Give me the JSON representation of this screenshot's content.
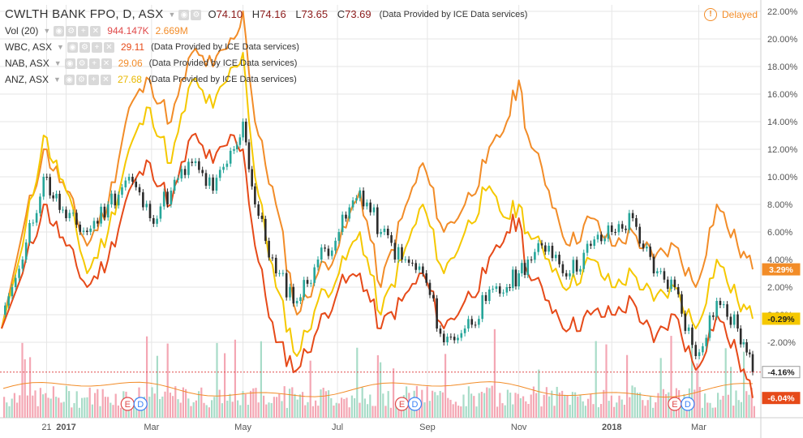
{
  "header": {
    "symbol": "CWLTH BANK FPO, D, ASX",
    "ohlc": {
      "o_label": "O",
      "o": "74.10",
      "h_label": "H",
      "h": "74.16",
      "l_label": "L",
      "l": "73.65",
      "c_label": "C",
      "c": "73.69"
    },
    "provider": "(Data Provided by ICE Data services)",
    "status": "Delayed",
    "status_icon": "exclamation-icon"
  },
  "legend": [
    {
      "name": "Vol (20)",
      "values": [
        "944.147K",
        "2.669M"
      ],
      "colors": [
        "#e04a4a",
        "#f28c28"
      ]
    },
    {
      "name": "WBC, ASX",
      "values": [
        "29.11"
      ],
      "colors": [
        "#e64a19"
      ],
      "provider": "(Data Provided by ICE Data services)"
    },
    {
      "name": "NAB, ASX",
      "values": [
        "29.06"
      ],
      "colors": [
        "#f28c28"
      ],
      "provider": "(Data Provided by ICE Data services)"
    },
    {
      "name": "ANZ, ASX",
      "values": [
        "27.68"
      ],
      "colors": [
        "#f2c200"
      ],
      "provider": "(Data Provided by ICE Data services)"
    }
  ],
  "colors": {
    "wbc": "#e64a19",
    "nab": "#f28c28",
    "anz": "#f5c800",
    "up": "#26a69a",
    "down": "#2b2b2b",
    "vol_up": "#a8dcc8",
    "vol_down": "#f4a7b4",
    "vol_ma": "#f28c28",
    "grid": "#e6e6e6"
  },
  "chart_data": {
    "type": "line",
    "y_unit": "%",
    "ylim": [
      -8,
      22
    ],
    "y_ticks": [
      "22.00%",
      "20.00%",
      "18.00%",
      "16.00%",
      "14.00%",
      "12.00%",
      "10.00%",
      "8.00%",
      "6.00%",
      "4.00%",
      "2.00%",
      "0.00%",
      "-2.00%"
    ],
    "x_ticks": [
      "21",
      "2017",
      "Mar",
      "May",
      "Jul",
      "Sep",
      "Nov",
      "2018",
      "Mar"
    ],
    "x_domain": [
      "2016-11-21",
      "2018-04-06"
    ],
    "x_tick_dates": [
      "2016-12-21",
      "2017-01-03",
      "2017-03-01",
      "2017-05-01",
      "2017-07-03",
      "2017-09-01",
      "2017-11-01",
      "2018-01-02",
      "2018-03-01"
    ],
    "last_values": [
      {
        "label": "3.29%",
        "value": 3.29,
        "series": "NAB, ASX"
      },
      {
        "label": "-0.29%",
        "value": -0.29,
        "series": "ANZ, ASX"
      },
      {
        "label": "-4.16%",
        "value": -4.16,
        "series": "CWLTH BANK FPO"
      },
      {
        "label": "-6.04%",
        "value": -6.04,
        "series": "WBC, ASX"
      }
    ],
    "series": [
      {
        "name": "NAB, ASX",
        "style": "line",
        "x": [
          "2016-11-21",
          "2016-12-05",
          "2016-12-19",
          "2017-01-03",
          "2017-01-17",
          "2017-01-31",
          "2017-02-14",
          "2017-02-28",
          "2017-03-14",
          "2017-03-28",
          "2017-04-11",
          "2017-04-25",
          "2017-05-01",
          "2017-05-09",
          "2017-05-23",
          "2017-06-06",
          "2017-06-20",
          "2017-07-04",
          "2017-07-18",
          "2017-08-01",
          "2017-08-15",
          "2017-08-29",
          "2017-09-12",
          "2017-09-26",
          "2017-10-10",
          "2017-10-24",
          "2017-11-01",
          "2017-11-07",
          "2017-11-21",
          "2017-12-05",
          "2017-12-19",
          "2018-01-02",
          "2018-01-16",
          "2018-01-30",
          "2018-02-13",
          "2018-02-27",
          "2018-03-13",
          "2018-03-27",
          "2018-04-06"
        ],
        "values": [
          -1,
          6,
          12,
          9,
          5,
          8,
          15,
          17,
          14,
          19,
          18,
          20,
          22,
          14,
          8,
          0,
          3,
          5,
          9,
          2,
          7,
          11,
          6,
          8,
          11,
          14,
          17,
          13,
          9,
          5,
          7,
          5,
          6,
          4,
          5,
          2,
          8,
          5,
          3.29
        ]
      },
      {
        "name": "ANZ, ASX",
        "style": "line",
        "x": [
          "2016-11-21",
          "2016-12-05",
          "2016-12-19",
          "2017-01-03",
          "2017-01-17",
          "2017-01-31",
          "2017-02-14",
          "2017-02-28",
          "2017-03-14",
          "2017-03-28",
          "2017-04-11",
          "2017-04-25",
          "2017-05-01",
          "2017-05-09",
          "2017-05-23",
          "2017-06-06",
          "2017-06-20",
          "2017-07-04",
          "2017-07-18",
          "2017-08-01",
          "2017-08-15",
          "2017-08-29",
          "2017-09-12",
          "2017-09-26",
          "2017-10-10",
          "2017-10-24",
          "2017-11-01",
          "2017-11-07",
          "2017-11-21",
          "2017-12-05",
          "2017-12-19",
          "2018-01-02",
          "2018-01-16",
          "2018-01-30",
          "2018-02-13",
          "2018-02-27",
          "2018-03-13",
          "2018-03-27",
          "2018-04-06"
        ],
        "values": [
          -1,
          5,
          13,
          9,
          3,
          6,
          12,
          15,
          11,
          17,
          15,
          18,
          19,
          10,
          2,
          -3,
          1,
          3,
          6,
          0,
          4,
          8,
          3,
          6,
          9,
          7,
          8,
          6,
          4,
          2,
          4,
          2,
          3,
          1,
          2,
          -1,
          4,
          1,
          -0.29
        ]
      },
      {
        "name": "WBC, ASX",
        "style": "line",
        "x": [
          "2016-11-21",
          "2016-12-05",
          "2016-12-19",
          "2017-01-03",
          "2017-01-17",
          "2017-01-31",
          "2017-02-14",
          "2017-02-28",
          "2017-03-14",
          "2017-03-28",
          "2017-04-11",
          "2017-04-25",
          "2017-05-01",
          "2017-05-09",
          "2017-05-23",
          "2017-06-06",
          "2017-06-20",
          "2017-07-04",
          "2017-07-18",
          "2017-08-01",
          "2017-08-15",
          "2017-08-29",
          "2017-09-12",
          "2017-09-26",
          "2017-10-10",
          "2017-10-24",
          "2017-11-01",
          "2017-11-07",
          "2017-11-21",
          "2017-12-05",
          "2017-12-19",
          "2018-01-02",
          "2018-01-16",
          "2018-01-30",
          "2018-02-13",
          "2018-02-27",
          "2018-03-13",
          "2018-03-27",
          "2018-04-06"
        ],
        "values": [
          -1,
          3,
          8,
          5,
          2,
          4,
          9,
          11,
          8,
          13,
          11,
          13,
          12,
          5,
          -2,
          -4,
          -1,
          2,
          3,
          -1,
          1,
          3,
          -1,
          1,
          3,
          6,
          7,
          3,
          1,
          -1,
          0,
          0,
          1,
          -2,
          0,
          -4,
          0,
          -3,
          -6.04
        ]
      },
      {
        "name": "CWLTH BANK FPO",
        "style": "candles",
        "x": [
          "2016-11-21",
          "2016-12-05",
          "2016-12-19",
          "2017-01-03",
          "2017-01-17",
          "2017-01-31",
          "2017-02-14",
          "2017-02-28",
          "2017-03-14",
          "2017-03-28",
          "2017-04-11",
          "2017-04-25",
          "2017-05-01",
          "2017-05-09",
          "2017-05-23",
          "2017-06-06",
          "2017-06-20",
          "2017-07-04",
          "2017-07-18",
          "2017-08-01",
          "2017-08-15",
          "2017-08-29",
          "2017-09-12",
          "2017-09-26",
          "2017-10-10",
          "2017-10-24",
          "2017-11-01",
          "2017-11-07",
          "2017-11-21",
          "2017-12-05",
          "2017-12-19",
          "2018-01-02",
          "2018-01-16",
          "2018-01-30",
          "2018-02-13",
          "2018-02-27",
          "2018-03-13",
          "2018-03-27",
          "2018-04-06"
        ],
        "values": [
          0,
          4,
          10,
          7,
          6,
          8,
          10,
          7,
          9,
          11,
          9,
          12,
          14,
          8,
          3,
          1,
          4,
          6,
          9,
          6,
          4,
          3,
          -2,
          -1,
          1,
          2,
          3,
          4,
          5,
          3,
          5,
          6,
          7,
          3,
          2,
          -3,
          1,
          -1,
          -4.16
        ]
      }
    ],
    "volume": {
      "name": "Vol (20)",
      "last": "944.147K",
      "ma": "2.669M"
    }
  },
  "markers": [
    {
      "date": "2017-02-13",
      "labels": [
        "E",
        "D"
      ]
    },
    {
      "date": "2017-08-15",
      "labels": [
        "E",
        "D"
      ]
    },
    {
      "date": "2018-02-13",
      "labels": [
        "E",
        "D"
      ]
    }
  ]
}
